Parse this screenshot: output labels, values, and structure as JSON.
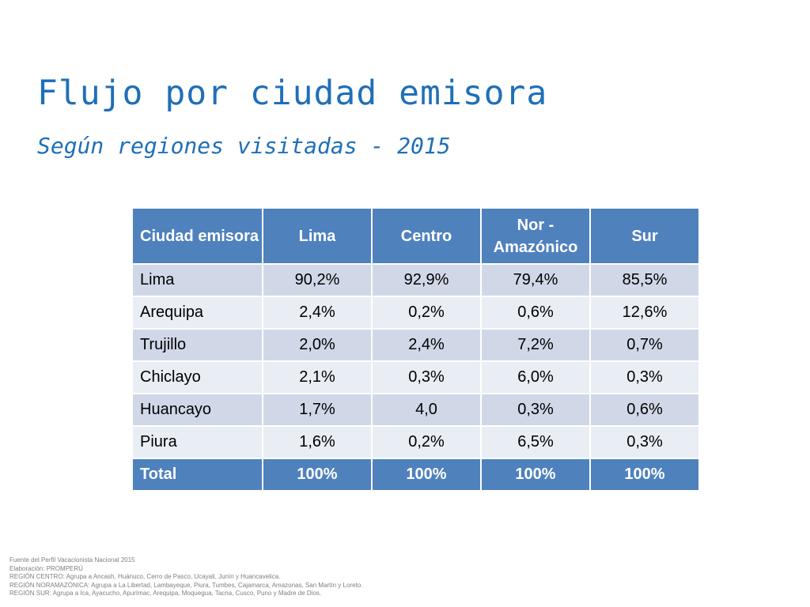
{
  "slide": {
    "title": "Flujo por ciudad emisora",
    "subtitle": "Según regiones visitadas - 2015"
  },
  "table": {
    "headers": [
      "Ciudad emisora",
      "Lima",
      "Centro",
      "Nor - Amazónico",
      "Sur"
    ],
    "rows": [
      [
        "Lima",
        "90,2%",
        "92,9%",
        "79,4%",
        "85,5%"
      ],
      [
        "Arequipa",
        "2,4%",
        "0,2%",
        "0,6%",
        "12,6%"
      ],
      [
        "Trujillo",
        "2,0%",
        "2,4%",
        "7,2%",
        "0,7%"
      ],
      [
        "Chiclayo",
        "2,1%",
        "0,3%",
        "6,0%",
        "0,3%"
      ],
      [
        "Huancayo",
        "1,7%",
        "4,0",
        "0,3%",
        "0,6%"
      ],
      [
        "Piura",
        "1,6%",
        "0,2%",
        "6,5%",
        "0,3%"
      ]
    ],
    "total": [
      "Total",
      "100%",
      "100%",
      "100%",
      "100%"
    ]
  },
  "footnotes": [
    "Fuente del Perfil Vacacionista Nacional 2015",
    "Elaboración: PROMPERÚ",
    "REGIÓN CENTRO: Agrupa a Ancash, Huánuco, Cerro de Pasco, Ucayali, Junín y Huancavelica.",
    "REGIÓN NORAMAZÓNICA: Agrupa a La Libertad, Lambayeque, Piura, Tumbes, Cajamarca, Amazonas, San Martín y Loreto.",
    "REGIÓN SUR: Agrupa a Ica, Ayacucho, Apurímac, Arequipa, Moquegua, Tacna, Cusco, Puno y Madre de Dios."
  ],
  "colors": {
    "title": "#1f6fb8",
    "header_bg": "#4f81bd",
    "row_odd": "#d0d8e8",
    "row_even": "#e9edf4"
  }
}
